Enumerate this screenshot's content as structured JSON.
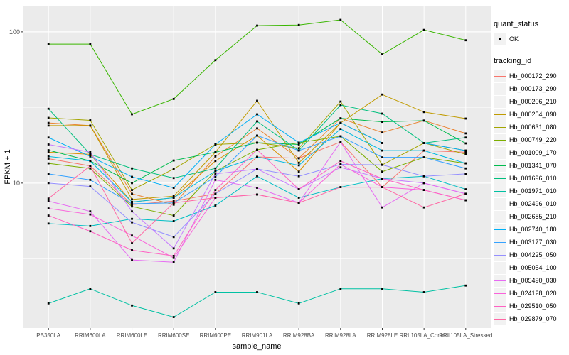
{
  "figure": {
    "x_axis_title": "sample_name",
    "y_axis_title": "FPKM + 1"
  },
  "legend": {
    "quant_status_title": "quant_status",
    "quant_status_value": "OK",
    "tracking_title": "tracking_id"
  },
  "chart_data": {
    "type": "line",
    "title": "",
    "xlabel": "sample_name",
    "ylabel": "FPKM + 1",
    "y_scale": "log10",
    "ylim": [
      1.1,
      149
    ],
    "y_breaks": [
      10,
      100
    ],
    "y_minor_breaks": [
      3.162,
      31.62
    ],
    "grid": true,
    "legend_position": "right",
    "panel_bg": "#EBEBEB",
    "grid_color": "#FFFFFF",
    "point_color": "#000000",
    "point_shape": "square",
    "categories": [
      "PB350LA",
      "RRIM600LA",
      "RRIM600LE",
      "RRIM600SE",
      "RRIM600PE",
      "RRIM901LA",
      "RRIM928BA",
      "RRIM928LA",
      "RRIM928LE",
      "RRII105LA_Control",
      "RRII105LA_Stressed"
    ],
    "series": [
      {
        "name": "Hb_000172_290",
        "color": "#F8766D",
        "values": [
          14.5,
          13.0,
          7.2,
          7.6,
          8.5,
          14.9,
          14.6,
          18.7,
          9.4,
          16.4,
          16.0
        ]
      },
      {
        "name": "Hb_000173_290",
        "color": "#EA8331",
        "values": [
          25.0,
          24.0,
          8.5,
          7.2,
          15.0,
          23.0,
          14.6,
          26.8,
          21.6,
          25.9,
          21.3
        ]
      },
      {
        "name": "Hb_000206_210",
        "color": "#D89000",
        "values": [
          16.0,
          15.5,
          7.5,
          8.0,
          14.0,
          20.6,
          11.9,
          25.0,
          18.4,
          18.4,
          16.4
        ]
      },
      {
        "name": "Hb_000254_090",
        "color": "#C09B00",
        "values": [
          24.0,
          24.0,
          7.8,
          8.2,
          16.0,
          35.0,
          13.6,
          25.0,
          38.5,
          29.5,
          26.7
        ]
      },
      {
        "name": "Hb_000631_080",
        "color": "#A3A500",
        "values": [
          27.0,
          26.0,
          9.0,
          12.4,
          18.0,
          18.5,
          17.0,
          34.6,
          13.2,
          18.4,
          15.5
        ]
      },
      {
        "name": "Hb_000749_220",
        "color": "#7CAE00",
        "values": [
          13.5,
          12.5,
          7.0,
          6.1,
          12.0,
          16.6,
          18.5,
          20.4,
          11.9,
          14.8,
          13.5
        ]
      },
      {
        "name": "Hb_001009_170",
        "color": "#39B600",
        "values": [
          83,
          83,
          28.5,
          36,
          65,
          110,
          111,
          120,
          71,
          103,
          88
        ]
      },
      {
        "name": "Hb_001341_070",
        "color": "#00BB4E",
        "values": [
          16.5,
          14.0,
          10.0,
          14.1,
          16.0,
          18.5,
          18.0,
          26.8,
          25.4,
          25.9,
          18.3
        ]
      },
      {
        "name": "Hb_001696_010",
        "color": "#00BF7D",
        "values": [
          31.0,
          15.5,
          12.5,
          10.8,
          12.5,
          25.6,
          16.4,
          32.8,
          28.8,
          18.4,
          20.0
        ]
      },
      {
        "name": "Hb_001971_010",
        "color": "#00C1A3",
        "values": [
          1.6,
          2.0,
          1.55,
          1.3,
          1.9,
          1.9,
          1.6,
          2.0,
          2.0,
          1.9,
          2.1
        ]
      },
      {
        "name": "Hb_002496_010",
        "color": "#00BFC4",
        "values": [
          5.4,
          5.2,
          5.8,
          5.6,
          7.1,
          11.1,
          8.0,
          9.4,
          10.7,
          11.1,
          9.1
        ]
      },
      {
        "name": "Hb_002685_210",
        "color": "#00BAE0",
        "values": [
          15.0,
          14.0,
          7.5,
          8.0,
          12.0,
          14.9,
          13.1,
          22.8,
          16.4,
          16.4,
          13.5
        ]
      },
      {
        "name": "Hb_002740_180",
        "color": "#00B0F6",
        "values": [
          20.0,
          15.0,
          11.0,
          9.3,
          18.0,
          28.5,
          18.5,
          25.0,
          18.4,
          18.4,
          16.4
        ]
      },
      {
        "name": "Hb_003177_030",
        "color": "#35A2FF",
        "values": [
          11.5,
          10.5,
          7.3,
          7.4,
          11.0,
          20.6,
          16.4,
          20.4,
          14.8,
          14.8,
          12.5
        ]
      },
      {
        "name": "Hb_004225_050",
        "color": "#9590FF",
        "values": [
          10.0,
          9.5,
          5.5,
          4.4,
          8.5,
          12.4,
          11.1,
          13.3,
          13.2,
          11.1,
          11.5
        ]
      },
      {
        "name": "Hb_005054_100",
        "color": "#C77CFF",
        "values": [
          18.0,
          16.0,
          6.5,
          3.7,
          11.5,
          12.4,
          9.1,
          12.7,
          10.7,
          10.0,
          8.5
        ]
      },
      {
        "name": "Hb_005490_030",
        "color": "#E76BF3",
        "values": [
          7.6,
          6.5,
          3.1,
          3.0,
          10.5,
          9.3,
          7.4,
          18.7,
          6.9,
          10.0,
          8.5
        ]
      },
      {
        "name": "Hb_024128_020",
        "color": "#FA62DB",
        "values": [
          6.8,
          6.2,
          4.5,
          3.2,
          8.0,
          8.4,
          7.4,
          13.3,
          9.4,
          9.0,
          7.7
        ]
      },
      {
        "name": "Hb_029510_050",
        "color": "#FF61C3",
        "values": [
          6.1,
          4.8,
          3.6,
          3.3,
          9.0,
          16.6,
          9.1,
          14.0,
          10.7,
          9.0,
          7.7
        ]
      },
      {
        "name": "Hb_029879_070",
        "color": "#FF67A4",
        "values": [
          7.9,
          13.0,
          4.0,
          7.4,
          8.0,
          8.4,
          7.4,
          9.4,
          9.4,
          6.9,
          8.5
        ]
      }
    ]
  }
}
